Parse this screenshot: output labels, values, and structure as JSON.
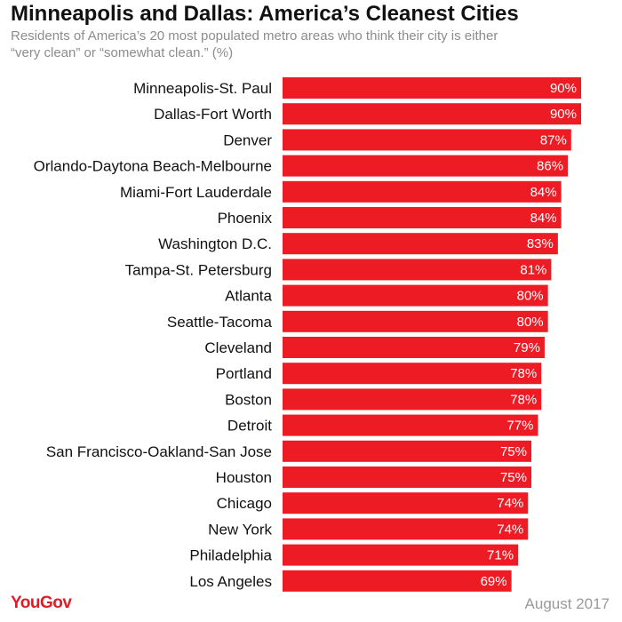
{
  "header": {
    "title": "Minneapolis and Dallas: America’s Cleanest Cities",
    "subtitle": "Residents of America’s 20 most populated metro areas who think their city is either “very clean” or “somewhat clean.” (%)"
  },
  "footer": {
    "brand": "YouGov",
    "date": "August 2017"
  },
  "colors": {
    "bar": "#ed1c24",
    "brand": "#e21c26"
  },
  "chart_data": {
    "type": "bar",
    "orientation": "horizontal",
    "categories": [
      "Minneapolis-St. Paul",
      "Dallas-Fort Worth",
      "Denver",
      "Orlando-Daytona Beach-Melbourne",
      "Miami-Fort Lauderdale",
      "Phoenix",
      "Washington D.C.",
      "Tampa-St. Petersburg",
      "Atlanta",
      "Seattle-Tacoma",
      "Cleveland",
      "Portland",
      "Boston",
      "Detroit",
      "San Francisco-Oakland-San Jose",
      "Houston",
      "Chicago",
      "New York",
      "Philadelphia",
      "Los Angeles"
    ],
    "values": [
      90,
      90,
      87,
      86,
      84,
      84,
      83,
      81,
      80,
      80,
      79,
      78,
      78,
      77,
      75,
      75,
      74,
      74,
      71,
      69
    ],
    "value_suffix": "%",
    "xlim": [
      0,
      90
    ],
    "grid": false,
    "legend": "none"
  }
}
